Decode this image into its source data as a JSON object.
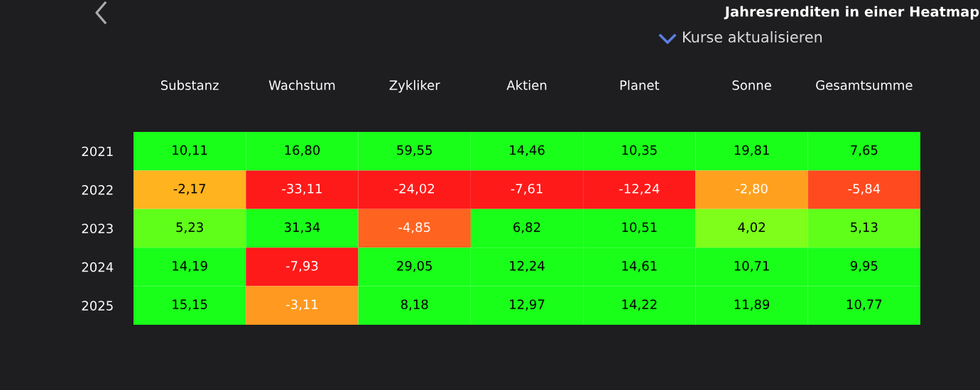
{
  "chart_data": {
    "type": "heatmap",
    "title": "Jahresrenditen in einer Heatmap",
    "annotations": [
      "Kurse aktualisieren"
    ],
    "categories": [
      "Substanz",
      "Wachstum",
      "Zykliker",
      "Aktien",
      "Planet",
      "Sonne",
      "Gesamtsumme"
    ],
    "y_categories": [
      "2021",
      "2022",
      "2023",
      "2024",
      "2025"
    ],
    "cells": [
      [
        10.11,
        16.8,
        59.55,
        14.46,
        10.35,
        19.81,
        7.65
      ],
      [
        -2.17,
        -33.11,
        -24.02,
        -7.61,
        -12.24,
        -2.8,
        -5.84
      ],
      [
        5.23,
        31.34,
        -4.85,
        6.82,
        10.51,
        4.02,
        5.13
      ],
      [
        14.19,
        -7.93,
        29.05,
        12.24,
        14.61,
        10.71,
        9.95
      ],
      [
        15.15,
        -3.11,
        8.18,
        12.97,
        14.22,
        11.89,
        10.77
      ]
    ],
    "cell_labels": [
      [
        "10,11",
        "16,80",
        "59,55",
        "14,46",
        "10,35",
        "19,81",
        "7,65"
      ],
      [
        "-2,17",
        "-33,11",
        "-24,02",
        "-7,61",
        "-12,24",
        "-2,80",
        "-5,84"
      ],
      [
        "5,23",
        "31,34",
        "-4,85",
        "6,82",
        "10,51",
        "4,02",
        "5,13"
      ],
      [
        "14,19",
        "-7,93",
        "29,05",
        "12,24",
        "14,61",
        "10,71",
        "9,95"
      ],
      [
        "15,15",
        "-3,11",
        "8,18",
        "12,97",
        "14,22",
        "11,89",
        "10,77"
      ]
    ],
    "colors": [
      [
        "#19ff19",
        "#19ff19",
        "#19ff19",
        "#19ff19",
        "#19ff19",
        "#19ff19",
        "#19ff19"
      ],
      [
        "#ffb51f",
        "#ff1a1a",
        "#ff1a1a",
        "#ff1a1a",
        "#ff1a1a",
        "#ffa21f",
        "#ff4a1f"
      ],
      [
        "#5aff1a",
        "#19ff19",
        "#ff6020",
        "#19ff19",
        "#19ff19",
        "#7dff1a",
        "#5cff1a"
      ],
      [
        "#19ff19",
        "#ff1a1a",
        "#19ff19",
        "#19ff19",
        "#19ff19",
        "#19ff19",
        "#19ff19"
      ],
      [
        "#19ff19",
        "#ffa01f",
        "#19ff19",
        "#19ff19",
        "#19ff19",
        "#19ff19",
        "#19ff19"
      ]
    ]
  }
}
